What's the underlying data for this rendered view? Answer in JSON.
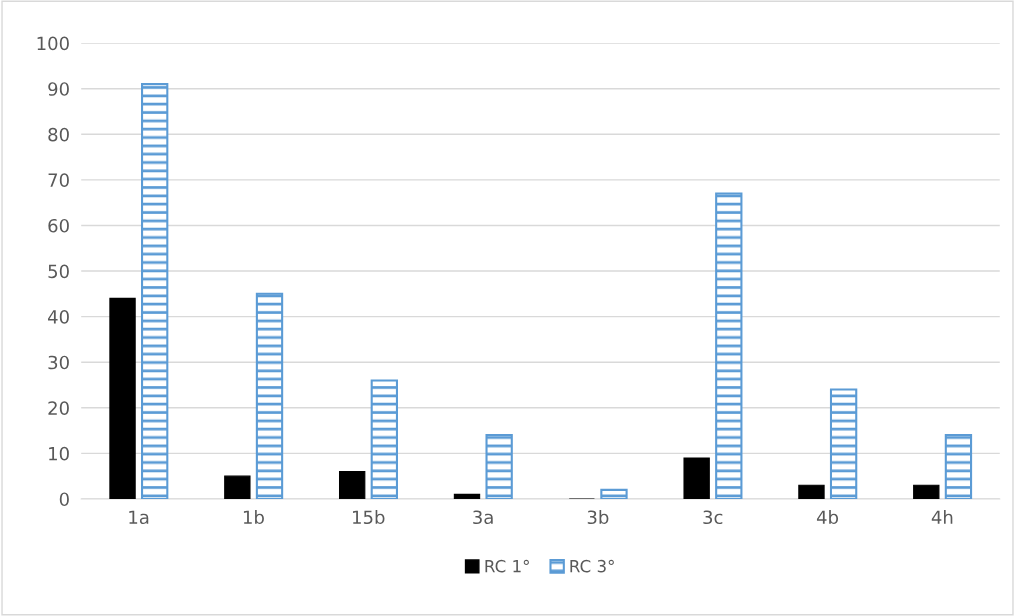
{
  "chart_data": {
    "type": "bar",
    "categories": [
      "1a",
      "1b",
      "15b",
      "3a",
      "3b",
      "3c",
      "4b",
      "4h"
    ],
    "series": [
      {
        "name": "RC 1°",
        "color": "#000000",
        "values": [
          44,
          5,
          6,
          1,
          0,
          9,
          3,
          3
        ]
      },
      {
        "name": "RC 3°",
        "color": "#5b9bd5",
        "values": [
          91,
          45,
          26,
          14,
          2,
          67,
          24,
          14
        ]
      }
    ],
    "ylim": [
      0,
      100
    ],
    "yticks": [
      0,
      10,
      20,
      30,
      40,
      50,
      60,
      70,
      80,
      90,
      100
    ],
    "grid": "y",
    "legend": "bottom"
  }
}
